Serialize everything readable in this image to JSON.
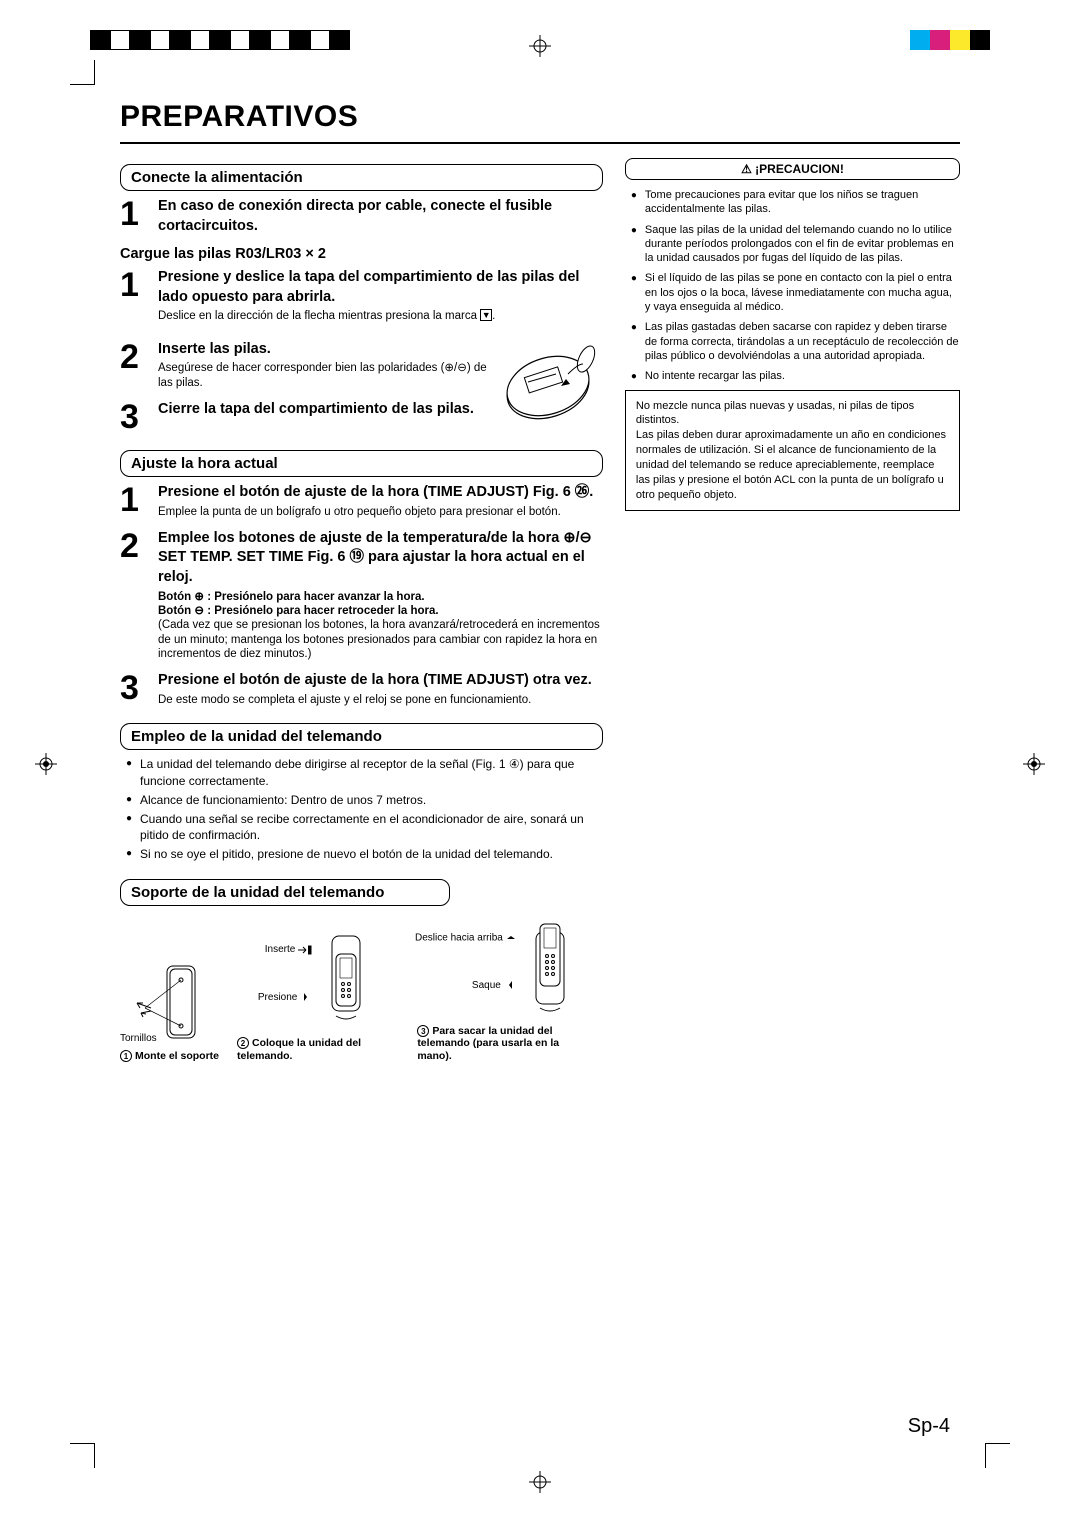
{
  "colorbar_left": [
    "#000",
    "#fff",
    "#000",
    "#fff",
    "#000",
    "#fff",
    "#000",
    "#fff",
    "#000",
    "#fff",
    "#000",
    "#fff",
    "#000"
  ],
  "colorbar_right": [
    "#00aeef",
    "#d81f7b",
    "#fde92b",
    "#000000"
  ],
  "title": "PREPARATIVOS",
  "sec1": {
    "header": "Conecte la alimentación",
    "step1": "En caso de conexión directa por cable, conecte el fusible cortacircuitos."
  },
  "sec2": {
    "header": "Cargue las pilas R03/LR03 × 2",
    "step1_bold": "Presione y deslice la tapa del compartimiento de las pilas del lado opuesto para abrirla.",
    "step1_small": "Deslice en la dirección de la flecha mientras presiona la marca ",
    "step2_bold": "Inserte las pilas.",
    "step2_small": "Asegúrese de hacer corresponder bien las polaridades (⊕/⊖) de las pilas.",
    "step3_bold": "Cierre la tapa del compartimiento de las pilas."
  },
  "sec3": {
    "header": "Ajuste la hora actual",
    "step1_bold": "Presione el botón de ajuste de la hora (TIME ADJUST) Fig. 6 ㉖.",
    "step1_small": "Emplee la punta de un bolígrafo u otro pequeño objeto para presionar el botón.",
    "step2_bold": "Emplee los botones de ajuste de la temperatura/de la hora ⊕/⊖ SET TEMP. SET TIME Fig. 6 ⑲ para ajustar la hora actual en el reloj.",
    "step2_line1": "Botón ⊕ : Presiónelo para hacer avanzar la hora.",
    "step2_line2": "Botón ⊖ : Presiónelo para hacer retroceder la hora.",
    "step2_line3": "(Cada vez que se presionan los botones, la hora avanzará/retrocederá en incrementos de un minuto; mantenga los botones presionados para cambiar con rapidez la hora en incrementos de diez minutos.)",
    "step3_bold": "Presione el botón de ajuste de la hora (TIME ADJUST) otra vez.",
    "step3_small": "De este modo se completa el ajuste y el reloj se pone en funcionamiento."
  },
  "sec4": {
    "header": "Empleo de la unidad del telemando",
    "b1": "La unidad del telemando debe dirigirse al receptor de la señal (Fig. 1 ④) para que funcione correctamente.",
    "b2": "Alcance de funcionamiento: Dentro de unos 7 metros.",
    "b3": "Cuando una señal se recibe correctamente en el acondicionador de aire, sonará un pitido de confirmación.",
    "b4": "Si no se oye el pitido, presione de nuevo el botón de la unidad del telemando."
  },
  "sec5": {
    "header": "Soporte de la unidad del telemando",
    "tornillos": "Tornillos",
    "inserte": "Inserte",
    "presione": "Presione",
    "deslice": "Deslice hacia arriba",
    "saque": "Saque",
    "c1": "Monte el soporte",
    "c2": "Coloque la unidad del telemando.",
    "c3": "Para sacar la unidad del telemando (para usarla en la mano)."
  },
  "caution": {
    "header": "⚠ ¡PRECAUCION!",
    "b1": "Tome precauciones para evitar que los niños se traguen accidentalmente las pilas.",
    "b2": "Saque las pilas de la unidad del telemando cuando no lo utilice durante períodos prolongados con el fin de evitar problemas en la unidad causados por fugas del líquido de las pilas.",
    "b3": "Si el líquido de las pilas se pone en contacto con la piel o entra en los ojos o la boca, lávese inmediatamente con mucha agua, y vaya enseguida al médico.",
    "b4": "Las pilas gastadas deben sacarse con rapidez y deben tirarse de forma correcta, tirándolas a un receptáculo de recolección de pilas público o devolviéndolas a una autoridad apropiada.",
    "b5": "No intente recargar las pilas.",
    "note": "No mezcle nunca pilas nuevas y usadas, ni pilas de tipos distintos.\nLas pilas deben durar aproximadamente un año en condiciones normales de utilización. Si el alcance de funcionamiento de la unidad del telemando se reduce apreciablemente, reemplace las pilas y presione el botón ACL con la punta de un bolígrafo u otro pequeño objeto."
  },
  "page": "Sp-4"
}
